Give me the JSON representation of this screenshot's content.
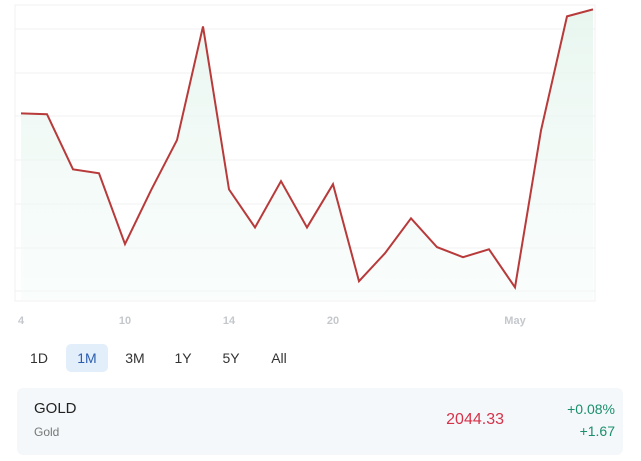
{
  "chart_data": {
    "type": "line",
    "categories": [
      "4",
      null,
      null,
      null,
      "10",
      null,
      null,
      null,
      "14",
      null,
      null,
      null,
      "20",
      null,
      null,
      null,
      null,
      null,
      null,
      "May",
      null,
      null,
      null
    ],
    "series": [
      {
        "color": "#b83a3a",
        "values": [
          4.07,
          4.05,
          2.79,
          2.7,
          1.08,
          2.31,
          3.46,
          6.06,
          2.33,
          1.46,
          2.52,
          1.46,
          2.45,
          0.23,
          0.87,
          1.67,
          1.01,
          0.78,
          0.96,
          0.09,
          3.68,
          6.29,
          6.45
        ]
      }
    ],
    "ylim": [
      -0.2,
      6.55
    ]
  },
  "ranges": [
    "1D",
    "1M",
    "3M",
    "1Y",
    "5Y",
    "All"
  ],
  "selected_range": 1,
  "quote": {
    "symbol": "GOLD",
    "name": "Gold",
    "price": "2044.33",
    "change_percent": "+0.08%",
    "change": "+1.67"
  }
}
